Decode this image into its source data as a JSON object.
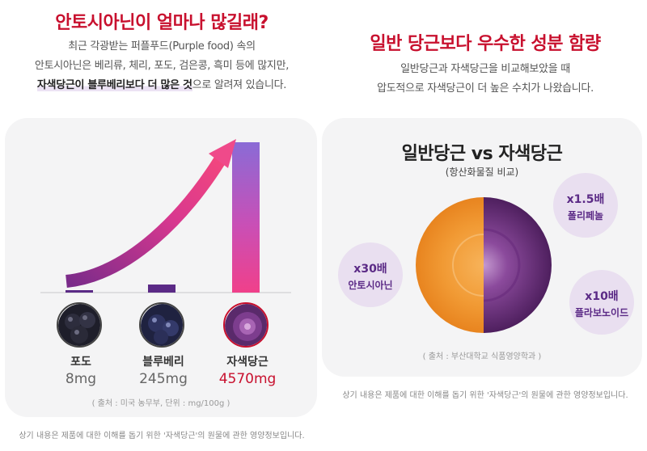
{
  "left": {
    "title": "안토시아닌이 얼마나 많길래?",
    "desc_line1": "최근 각광받는 퍼플푸드(Purple food) 속의",
    "desc_line2": "안토시아닌은 베리류, 체리, 포도, 검은콩, 흑미 등에 많지만,",
    "desc_line3_bold": "자색당근이 블루베리보다 더 많은 것",
    "desc_line3_rest": "으로 알려져 있습니다.",
    "source": "( 출처 : 미국 농무부, 단위 : mg/100g )",
    "footnote": "상기 내용은 제품에 대한 이해를 돕기 위한 '자색당근'의 원물에 관한 영양정보입니다."
  },
  "chart_data": {
    "type": "bar",
    "categories": [
      "포도",
      "블루베리",
      "자색당근"
    ],
    "values": [
      8,
      245,
      4570
    ],
    "value_labels": [
      "8mg",
      "245mg",
      "4570mg"
    ],
    "unit": "mg/100g",
    "colors": [
      "#5b2a86",
      "#5b2a86",
      "#e83e8c"
    ],
    "highlight_index": 2
  },
  "right": {
    "title": "일반 당근보다 우수한 성분 함량",
    "desc_line1": "일반당근과 자색당근을 비교해보았을 때",
    "desc_line2": "압도적으로 자색당근이 더 높은 수치가 나왔습니다.",
    "compare_title": "일반당근 vs 자색당근",
    "compare_sub": "(항산화물질 비교)",
    "bubbles": [
      {
        "multiplier": "x1.5배",
        "component": "폴리페놀"
      },
      {
        "multiplier": "x30배",
        "component": "안토시아닌"
      },
      {
        "multiplier": "x10배",
        "component": "플라보노이드"
      }
    ],
    "source": "( 출처 : 부산대학교 식품영양학과 )",
    "footnote": "상기 내용은 제품에 대한 이해를 돕기 위한 '자색당근'의 원물에 관한 영양정보입니다."
  }
}
